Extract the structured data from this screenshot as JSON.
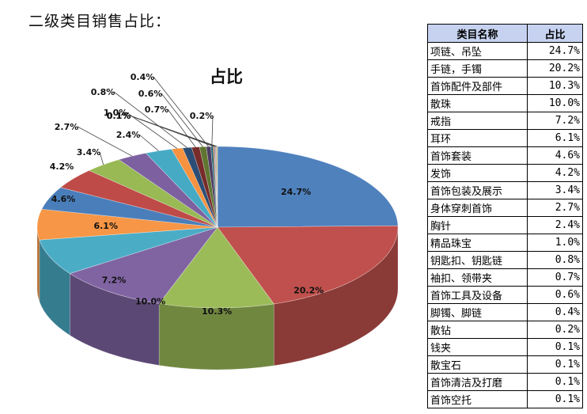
{
  "page": {
    "title": "二级类目销售占比："
  },
  "table": {
    "headers": [
      "类目名称",
      "占比"
    ]
  },
  "chart_data": {
    "type": "pie",
    "title": "占比",
    "categories": [
      "项链、吊坠",
      "手链，手镯",
      "首饰配件及部件",
      "散珠",
      "戒指",
      "耳环",
      "首饰套装",
      "发饰",
      "首饰包装及展示",
      "身体穿刺首饰",
      "胸针",
      "精品珠宝",
      "钥匙扣、钥匙链",
      "袖扣、领带夹",
      "首饰工具及设备",
      "脚镯、脚链",
      "散钻",
      "钱夹",
      "散宝石",
      "首饰清洁及打磨",
      "首饰空托"
    ],
    "values": [
      24.7,
      20.2,
      10.3,
      10.0,
      7.2,
      6.1,
      4.6,
      4.2,
      3.4,
      2.7,
      2.4,
      1.0,
      0.8,
      0.7,
      0.6,
      0.4,
      0.2,
      0.1,
      0.1,
      0.1,
      0.1
    ],
    "slice_labels": [
      "24.7%",
      "20.2%",
      "10.3%",
      "10.0%",
      "7.2%",
      "6.1%",
      "4.6%",
      "4.2%",
      "3.4%",
      "2.7%",
      "2.4%",
      "1.0%",
      "0.8%",
      "0.7%",
      "0.6%",
      "0.4%",
      "0.2%",
      "0.1%",
      "0.1%",
      "0.1%",
      "0.1%"
    ],
    "table_values": [
      "24.7%",
      "20.2%",
      "10.3%",
      "10.0%",
      "7.2%",
      "6.1%",
      "4.6%",
      "4.2%",
      "3.4%",
      "2.7%",
      "2.4%",
      "1.0%",
      "0.8%",
      "0.7%",
      "0.6%",
      "0.4%",
      "0.2%",
      "0.1%",
      "0.1%",
      "0.1%",
      "0.1%"
    ],
    "colors": [
      "#4f81bd",
      "#c0504d",
      "#9bbb59",
      "#8064a2",
      "#4bacc6",
      "#f79646",
      "#4a7ebb",
      "#be4b48",
      "#98b954",
      "#7d60a0",
      "#46aac5",
      "#f69240",
      "#2c4d75",
      "#772c2a",
      "#5f7530",
      "#4d3b62",
      "#276a7c",
      "#b65708",
      "#729aca",
      "#cd7371",
      "#afc97a"
    ],
    "legend": "none"
  }
}
